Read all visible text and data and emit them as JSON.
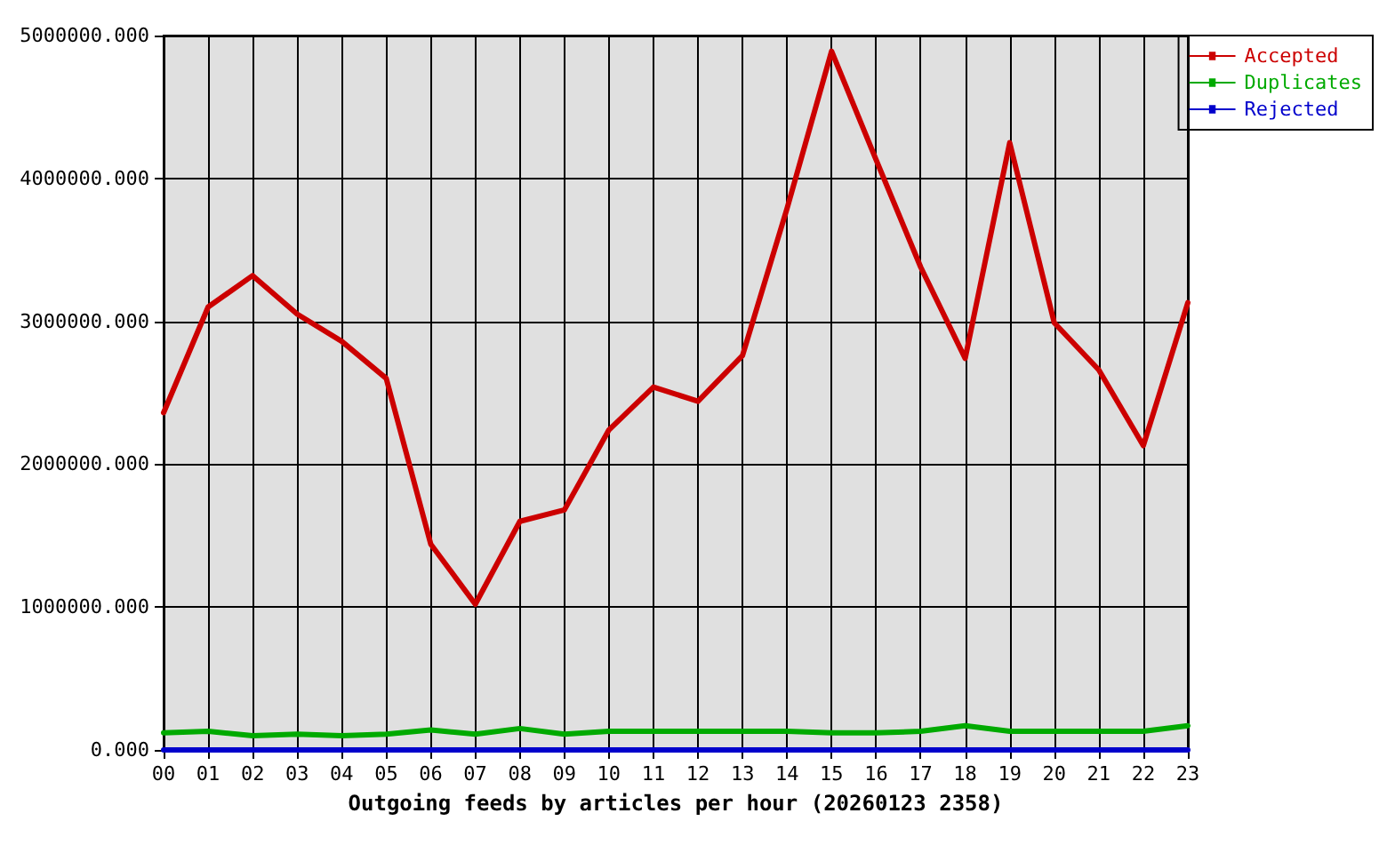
{
  "chart_data": {
    "type": "line",
    "xlabel": "Outgoing feeds by articles per hour (20260123 2358)",
    "categories": [
      "00",
      "01",
      "02",
      "03",
      "04",
      "05",
      "06",
      "07",
      "08",
      "09",
      "10",
      "11",
      "12",
      "13",
      "14",
      "15",
      "16",
      "17",
      "18",
      "19",
      "20",
      "21",
      "22",
      "23"
    ],
    "series": [
      {
        "name": "Accepted",
        "color": "#cc0000",
        "values": [
          2360000,
          3100000,
          3320000,
          3050000,
          2860000,
          2600000,
          1440000,
          1020000,
          1600000,
          1680000,
          2240000,
          2540000,
          2440000,
          2760000,
          3790000,
          4890000,
          4130000,
          3380000,
          2740000,
          4250000,
          2990000,
          2660000,
          2130000,
          3130000
        ]
      },
      {
        "name": "Duplicates",
        "color": "#00aa00",
        "values": [
          120000,
          130000,
          100000,
          110000,
          100000,
          110000,
          140000,
          110000,
          150000,
          110000,
          130000,
          130000,
          130000,
          130000,
          130000,
          120000,
          120000,
          130000,
          170000,
          130000,
          130000,
          130000,
          130000,
          170000
        ]
      },
      {
        "name": "Rejected",
        "color": "#0000cc",
        "values": [
          0,
          0,
          0,
          0,
          0,
          0,
          0,
          0,
          0,
          0,
          0,
          0,
          0,
          0,
          0,
          0,
          0,
          0,
          0,
          0,
          0,
          0,
          0,
          0
        ]
      }
    ],
    "ylim": [
      0,
      5000000
    ],
    "yticks": [
      {
        "value": 0,
        "label": "0.000"
      },
      {
        "value": 1000000,
        "label": "1000000.000"
      },
      {
        "value": 2000000,
        "label": "2000000.000"
      },
      {
        "value": 3000000,
        "label": "3000000.000"
      },
      {
        "value": 4000000,
        "label": "4000000.000"
      },
      {
        "value": 5000000,
        "label": "5000000.000"
      }
    ],
    "grid": true,
    "legend": "top right",
    "marker": "none",
    "line_style": "solid"
  }
}
